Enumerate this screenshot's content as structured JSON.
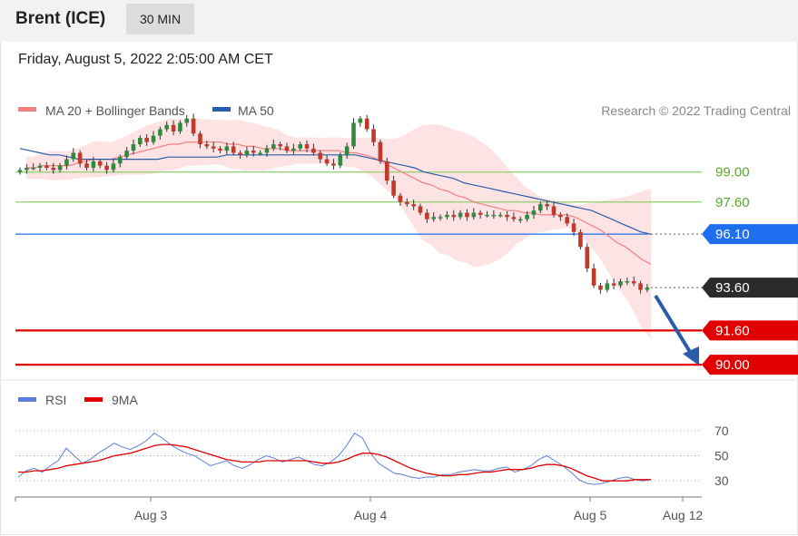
{
  "header": {
    "instrument": "Brent (ICE)",
    "timeframe": "30 MIN"
  },
  "datetime": "Friday, August 5, 2022 2:05:00 AM CET",
  "attribution": "Research © 2022 Trading Central",
  "colors": {
    "ma20": "#f08080",
    "ma50": "#2a5caa",
    "band": "#fcdada",
    "up": "#2e8b3e",
    "down": "#c0392b",
    "resistance": "#8fcf6a",
    "pivot": "#1e6ff0",
    "support": "#e00000",
    "current": "#2b2b2b",
    "rsi": "#5a7fd6",
    "rsi9ma": "#e00000",
    "arrow": "#2a5caa"
  },
  "chart_data": [
    {
      "type": "line",
      "name": "price",
      "legend": [
        {
          "label": "MA 20 + Bollinger Bands",
          "color": "#f08080"
        },
        {
          "label": "MA 50",
          "color": "#2a5caa"
        }
      ],
      "ylim": [
        89.2,
        101.7
      ],
      "x_ticks": [
        "Aug 3",
        "Aug 4",
        "Aug 5",
        "Aug 12"
      ],
      "levels": [
        {
          "label": "99.00",
          "value": 99.0,
          "kind": "resistance"
        },
        {
          "label": "97.60",
          "value": 97.6,
          "kind": "resistance"
        },
        {
          "label": "96.10",
          "value": 96.1,
          "kind": "pivot"
        },
        {
          "label": "93.60",
          "value": 93.6,
          "kind": "current"
        },
        {
          "label": "91.60",
          "value": 91.6,
          "kind": "support"
        },
        {
          "label": "90.00",
          "value": 90.0,
          "kind": "support"
        }
      ],
      "close": [
        99.1,
        99.2,
        99.2,
        99.3,
        99.2,
        99.1,
        99.3,
        99.6,
        99.9,
        99.4,
        99.2,
        99.5,
        99.3,
        99.1,
        99.4,
        99.7,
        100.0,
        100.3,
        100.6,
        100.4,
        100.7,
        101.0,
        101.2,
        100.9,
        101.3,
        101.5,
        100.8,
        100.3,
        100.2,
        100.1,
        100.0,
        100.2,
        99.9,
        99.8,
        100.0,
        99.9,
        99.9,
        100.1,
        100.3,
        100.2,
        100.0,
        100.1,
        100.3,
        100.1,
        99.9,
        99.6,
        99.4,
        99.3,
        99.8,
        100.2,
        101.3,
        101.5,
        101.0,
        100.4,
        99.5,
        98.6,
        97.9,
        97.6,
        97.5,
        97.4,
        97.1,
        96.8,
        96.9,
        96.9,
        97.0,
        96.9,
        97.1,
        96.9,
        97.1,
        97.0,
        97.0,
        97.0,
        97.0,
        96.9,
        96.8,
        96.8,
        97.0,
        97.2,
        97.5,
        97.4,
        97.0,
        96.9,
        96.6,
        96.2,
        95.5,
        94.5,
        93.7,
        93.5,
        93.8,
        93.7,
        93.9,
        93.9,
        93.8,
        93.5,
        93.6
      ],
      "ma20": [
        99.2,
        99.2,
        99.3,
        99.3,
        99.3,
        99.3,
        99.4,
        99.5,
        99.6,
        99.6,
        99.6,
        99.7,
        99.8,
        99.9,
        100.0,
        100.1,
        100.2,
        100.3,
        100.3,
        100.4,
        100.4,
        100.4,
        100.4,
        100.4,
        100.3,
        100.3,
        100.2,
        100.2,
        100.1,
        100.1,
        100.1,
        100.0,
        100.0,
        100.0,
        100.0,
        100.0,
        100.0,
        100.0,
        99.9,
        99.9,
        99.8,
        99.7,
        99.5,
        99.3,
        99.1,
        98.9,
        98.7,
        98.5,
        98.4,
        98.2,
        98.1,
        97.9,
        97.8,
        97.6,
        97.5,
        97.4,
        97.3,
        97.2,
        97.2,
        97.1,
        97.1,
        97.0,
        97.0,
        97.0,
        97.0,
        96.9,
        96.7,
        96.5,
        96.3,
        96.0,
        95.7,
        95.5,
        95.2,
        94.9,
        94.7
      ],
      "ma50": [
        100.1,
        100.0,
        99.9,
        99.8,
        99.8,
        99.7,
        99.6,
        99.6,
        99.6,
        99.6,
        99.6,
        99.6,
        99.6,
        99.6,
        99.6,
        99.7,
        99.7,
        99.7,
        99.7,
        99.7,
        99.7,
        99.8,
        99.8,
        99.8,
        99.8,
        99.8,
        99.8,
        99.8,
        99.8,
        99.8,
        99.8,
        99.8,
        99.8,
        99.8,
        99.8,
        99.7,
        99.6,
        99.5,
        99.4,
        99.3,
        99.2,
        99.0,
        98.9,
        98.8,
        98.7,
        98.5,
        98.4,
        98.3,
        98.2,
        98.1,
        98.0,
        97.9,
        97.8,
        97.7,
        97.6,
        97.5,
        97.4,
        97.3,
        97.2,
        97.0,
        96.8,
        96.6,
        96.4,
        96.2,
        96.1
      ]
    },
    {
      "type": "line",
      "name": "rsi",
      "legend": [
        {
          "label": "RSI",
          "color": "#5a7fd6"
        },
        {
          "label": "9MA",
          "color": "#e00000"
        }
      ],
      "ylim": [
        20,
        80
      ],
      "y_ticks": [
        70,
        50,
        30
      ],
      "rsi": [
        33,
        38,
        40,
        37,
        42,
        46,
        56,
        50,
        44,
        47,
        52,
        56,
        60,
        57,
        55,
        58,
        62,
        68,
        64,
        59,
        55,
        52,
        50,
        46,
        42,
        44,
        46,
        42,
        40,
        43,
        47,
        50,
        48,
        45,
        47,
        49,
        46,
        43,
        42,
        45,
        50,
        58,
        68,
        64,
        52,
        44,
        40,
        36,
        35,
        33,
        32,
        33,
        33,
        35,
        35,
        37,
        38,
        39,
        38,
        38,
        40,
        41,
        37,
        39,
        42,
        47,
        50,
        46,
        42,
        37,
        31,
        28,
        27,
        28,
        30,
        32,
        33,
        31,
        30,
        31
      ],
      "rsi9ma": [
        37,
        37,
        38,
        38,
        39,
        40,
        42,
        43,
        44,
        45,
        46,
        48,
        50,
        51,
        52,
        54,
        56,
        58,
        59,
        59,
        58,
        57,
        55,
        53,
        51,
        49,
        47,
        46,
        45,
        45,
        45,
        46,
        46,
        46,
        46,
        46,
        46,
        45,
        44,
        44,
        45,
        47,
        50,
        52,
        52,
        51,
        49,
        46,
        43,
        40,
        38,
        36,
        35,
        34,
        34,
        35,
        35,
        36,
        37,
        37,
        38,
        39,
        39,
        39,
        40,
        42,
        43,
        43,
        42,
        40,
        37,
        34,
        32,
        30,
        30,
        30,
        30,
        31,
        31,
        31
      ]
    }
  ]
}
